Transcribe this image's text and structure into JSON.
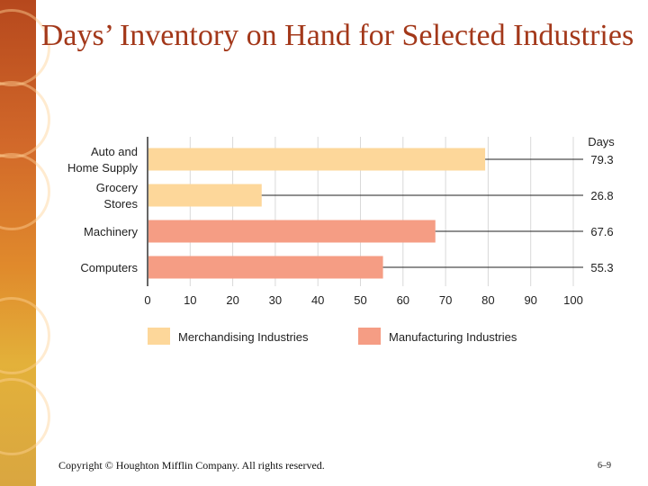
{
  "slide": {
    "title": "Days’ Inventory on Hand for Selected Industries",
    "copyright": "Copyright © Houghton Mifflin Company.  All rights reserved.",
    "page_number": "6–9"
  },
  "colors": {
    "merchandising": "#fdd79a",
    "manufacturing": "#f59d84",
    "title": "#a3381a",
    "grid": "#d9d9d9"
  },
  "chart_data": {
    "type": "bar",
    "orientation": "horizontal",
    "categories": [
      [
        "Auto and",
        "Home Supply"
      ],
      [
        "Grocery",
        "Stores"
      ],
      [
        "Machinery"
      ],
      [
        "Computers"
      ]
    ],
    "values": [
      79.3,
      26.8,
      67.6,
      55.3
    ],
    "value_labels": [
      "79.3",
      "26.8",
      "67.6",
      "55.3"
    ],
    "groups": [
      "Merchandising Industries",
      "Merchandising Industries",
      "Manufacturing Industries",
      "Manufacturing Industries"
    ],
    "value_header": "Days",
    "xlim": [
      0,
      100
    ],
    "xticks": [
      0,
      10,
      20,
      30,
      40,
      50,
      60,
      70,
      80,
      90,
      100
    ],
    "grid": true,
    "legend": {
      "position": "bottom",
      "entries": [
        {
          "name": "Merchandising Industries",
          "color": "#fdd79a"
        },
        {
          "name": "Manufacturing Industries",
          "color": "#f59d84"
        }
      ]
    }
  }
}
